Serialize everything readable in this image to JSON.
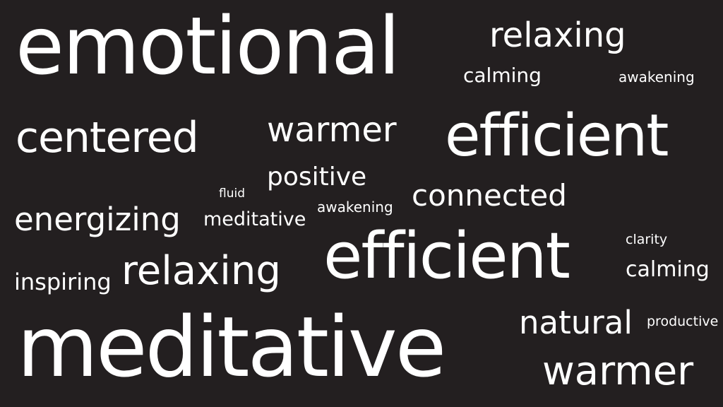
{
  "background_color": "#231f20",
  "text_color": "#ffffff",
  "words": [
    "emotional",
    "relaxing",
    "calming",
    "awakening",
    "centered",
    "warmer",
    "efficient",
    "positive",
    "fluid",
    "connected",
    "energizing",
    "meditative",
    "awakening",
    "clarity",
    "efficient",
    "relaxing",
    "inspiring",
    "calming",
    "natural",
    "productive",
    "meditative",
    "warmer"
  ]
}
